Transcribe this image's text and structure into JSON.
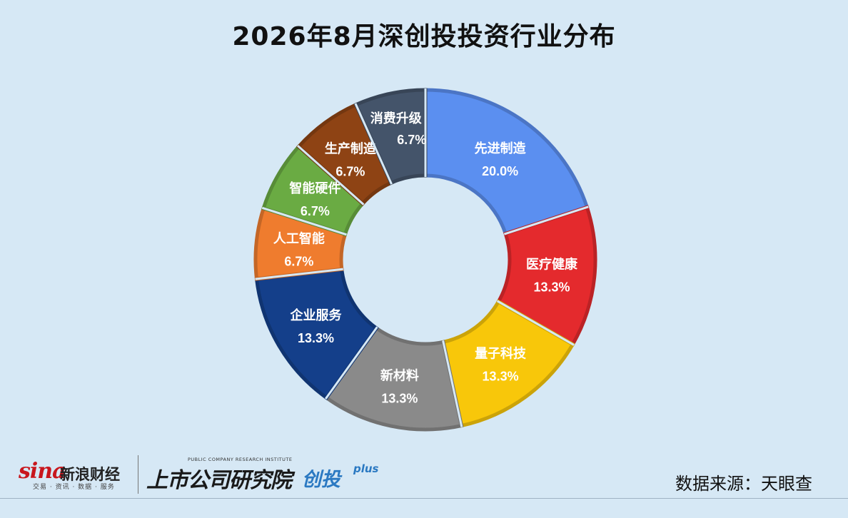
{
  "chart_data": {
    "type": "pie",
    "variant": "donut",
    "title": "2026年8月深创投投资行业分布",
    "slices": [
      {
        "label": "先进制造",
        "value": 20.0,
        "value_label": "20.0%",
        "color": "#5b8ff0"
      },
      {
        "label": "医疗健康",
        "value": 13.3,
        "value_label": "13.3%",
        "color": "#e42a2d"
      },
      {
        "label": "量子科技",
        "value": 13.3,
        "value_label": "13.3%",
        "color": "#f8c70a"
      },
      {
        "label": "新材料",
        "value": 13.3,
        "value_label": "13.3%",
        "color": "#8a8a8a"
      },
      {
        "label": "企业服务",
        "value": 13.3,
        "value_label": "13.3%",
        "color": "#143f8a"
      },
      {
        "label": "人工智能",
        "value": 6.7,
        "value_label": "6.7%",
        "color": "#ef7c2e"
      },
      {
        "label": "智能硬件",
        "value": 6.7,
        "value_label": "6.7%",
        "color": "#6aab43"
      },
      {
        "label": "生产制造",
        "value": 6.7,
        "value_label": "6.7%",
        "color": "#8e4314"
      },
      {
        "label": "消费升级",
        "value": 6.7,
        "value_label": "6.7%",
        "color": "#44546a"
      }
    ],
    "start_angle_deg": 0,
    "direction": "clockwise"
  },
  "footer": {
    "sina_mark": "sina",
    "sina_name": "新浪财经",
    "sina_sub": "交易 · 资讯 · 数据 · 服务",
    "institute_en": "PUBLIC COMPANY RESEARCH INSTITUTE",
    "institute_cn": "上市公司研究院",
    "column_cn": "创投",
    "column_plus": "plus",
    "source": "数据来源：天眼查"
  },
  "colors": {
    "background": "#d6e8f5",
    "brand_red": "#c8161d",
    "brand_blue": "#2b79c2"
  }
}
